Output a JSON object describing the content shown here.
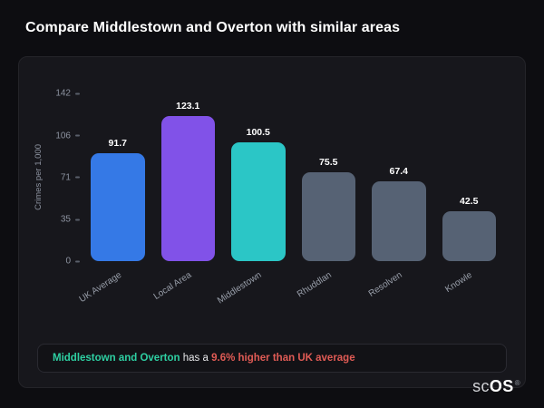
{
  "page": {
    "title": "Compare Middlestown and Overton with similar areas"
  },
  "chart_data": {
    "type": "bar",
    "categories": [
      "UK Average",
      "Local Area",
      "Middlestown",
      "Rhuddlan",
      "Resolven",
      "Knowle"
    ],
    "values": [
      91.7,
      123.1,
      100.5,
      75.5,
      67.4,
      42.5
    ],
    "bar_colors": [
      "#3579e6",
      "#8152e8",
      "#2bc6c6",
      "#566274",
      "#566274",
      "#566274"
    ],
    "title": "",
    "xlabel": "",
    "ylabel": "Crimes per 1,000",
    "yticks": [
      142,
      106,
      71,
      35,
      0
    ],
    "ylim": [
      0,
      142
    ],
    "grid": false,
    "legend": false,
    "value_label_color": "#ffffff",
    "tick_color": "#8d93a0"
  },
  "note": {
    "highlight": "Middlestown and Overton",
    "middle": "has a",
    "alert": "9.6% higher than UK average",
    "highlight_color": "#2ecfa2",
    "alert_color": "#e05b55"
  },
  "logo": {
    "prefix": "sc",
    "suffix": "OS",
    "reg": "®"
  }
}
